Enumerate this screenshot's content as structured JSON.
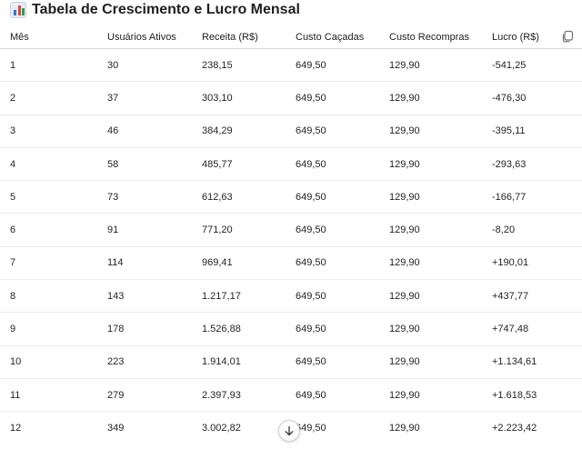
{
  "title": "Tabela de Crescimento e Lucro Mensal",
  "title_icon": "bar-chart-emoji",
  "table": {
    "headers": [
      "Mês",
      "Usuários Ativos",
      "Receita (R$)",
      "Custo Caçadas",
      "Custo Recompras",
      "Lucro (R$)"
    ],
    "rows": [
      [
        "1",
        "30",
        "238,15",
        "649,50",
        "129,90",
        "-541,25"
      ],
      [
        "2",
        "37",
        "303,10",
        "649,50",
        "129,90",
        "-476,30"
      ],
      [
        "3",
        "46",
        "384,29",
        "649,50",
        "129,90",
        "-395,11"
      ],
      [
        "4",
        "58",
        "485,77",
        "649,50",
        "129,90",
        "-293,63"
      ],
      [
        "5",
        "73",
        "612,63",
        "649,50",
        "129,90",
        "-166,77"
      ],
      [
        "6",
        "91",
        "771,20",
        "649,50",
        "129,90",
        "-8,20"
      ],
      [
        "7",
        "114",
        "969,41",
        "649,50",
        "129,90",
        "+190,01"
      ],
      [
        "8",
        "143",
        "1.217,17",
        "649,50",
        "129,90",
        "+437,77"
      ],
      [
        "9",
        "178",
        "1.526,88",
        "649,50",
        "129,90",
        "+747,48"
      ],
      [
        "10",
        "223",
        "1.914,01",
        "649,50",
        "129,90",
        "+1.134,61"
      ],
      [
        "11",
        "279",
        "2.397,93",
        "649,50",
        "129,90",
        "+1.618,53"
      ],
      [
        "12",
        "349",
        "3.002,82",
        "649,50",
        "129,90",
        "+2.223,42"
      ]
    ]
  },
  "icons": {
    "copy": "copy-icon",
    "scroll": "arrow-down-icon"
  }
}
